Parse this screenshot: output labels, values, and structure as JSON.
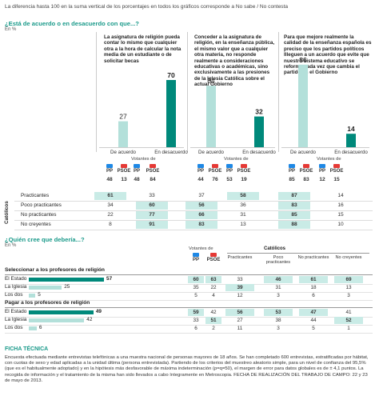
{
  "header_note": "La diferencia hasta 100 en la suma vertical de los porcentajes en todos los gráficos corresponde a No sabe / No contesta",
  "section1": {
    "title": "¿Está de acuerdo o en desacuerdo con que...?",
    "unit": "En %",
    "statements": [
      "La asignatura de religión pueda contar lo mismo que cualquier otra a la hora de calcular la nota media de un estudiante o de solicitar becas",
      "Conceder a la asignatura de religión, en la enseñanza pública, el mismo valor que a cualquier otra materia, no responde realmente a consideraciones educativas o académicas, sino exclusivamente a las presiones de la Iglesia Católica sobre el actual Gobierno",
      "Para que mejore realmente la calidad de la enseñanza española es preciso que los partidos políticos llleguen a un acuerdo que evite que nuestro sistema educativo se reforme cada vez que cambia el partido en el Gobierno"
    ],
    "bar_labels": [
      "De acuerdo",
      "En desacuerdo"
    ],
    "votantes_label": "Votantes de",
    "party_labels": [
      "PP",
      "PSOE"
    ],
    "catolicos_label": "Católicos",
    "row_labels": [
      "Practicantes",
      "Poco practicantes",
      "No practicantes",
      "No creyentes"
    ]
  },
  "section2": {
    "title": "¿Quién cree que debería...?",
    "unit": "En %",
    "votantes_label": "Votantes de",
    "catolicos_label": "Católicos",
    "party_labels": [
      "PP",
      "PSOE"
    ],
    "cat_cols": [
      "Practicantes",
      "Poco practicantes",
      "No practicantes",
      "No creyentes"
    ],
    "groups": [
      {
        "title": "Seleccionar a los profesores de religión",
        "rows": [
          "El Estado",
          "La Iglesia",
          "Los dos"
        ]
      },
      {
        "title": "Pagar a los profesores de religión",
        "rows": [
          "El Estado",
          "La Iglesia",
          "Los dos"
        ]
      }
    ]
  },
  "ficha": {
    "title": "FICHA TÉCNICA",
    "text": "Encuesta efectuada mediante entrevistas telefónicas a una muestra nacional de personas mayores de 18 años. Se han completado 600 entrevistas, estratificadas por hábitat, con cuotas de sexo y edad aplicadas a la unidad última (persona entrevistada). Partiendo de los criterios del muestreo aleatorio simple, para un nivel de confianza del 95,5% (que es el habitualmente adoptado) y en la hipótesis más desfavorable de máxima indeterminación (p=q=50), el margen de error para datos globales es de ± 4,1 puntos. La recogida de información y el tratamiento de la misma han sido llevados a cabo íntegramente en Metroscopia. FECHA DE REALIZACIÓN DEL TRABAJO DE CAMPO: 22 y 23 de mayo de 2013."
  },
  "colors": {
    "accent": "#00897b",
    "light": "#b3e0da",
    "highlight": "#c9ebe6",
    "pp": "#1e88e5",
    "psoe": "#e53935"
  },
  "chart_data": [
    {
      "type": "bar",
      "title": "¿Está de acuerdo o en desacuerdo con que...?",
      "categories": [
        "Statement 1",
        "Statement 2",
        "Statement 3"
      ],
      "series": [
        {
          "name": "De acuerdo",
          "values": [
            27,
            64,
            86
          ]
        },
        {
          "name": "En desacuerdo",
          "values": [
            70,
            32,
            14
          ]
        }
      ],
      "ylim": [
        0,
        100
      ]
    },
    {
      "type": "table",
      "title": "Votantes de / Católicos by statement",
      "columns": [
        "PP",
        "PSOE",
        "PP",
        "PSOE",
        "PP",
        "PSOE"
      ],
      "column_statements": [
        1,
        1,
        2,
        2,
        3,
        3
      ],
      "votantes": [
        [
          48,
          13
        ],
        [
          48,
          84
        ],
        [
          44,
          76
        ],
        [
          53,
          19
        ],
        [
          85,
          83
        ],
        [
          12,
          15
        ]
      ],
      "votantes_cells": [
        [
          48,
          13,
          48,
          84
        ],
        [
          44,
          76,
          53,
          19
        ],
        [
          85,
          83,
          12,
          15
        ]
      ],
      "catolicos": {
        "Practicantes": [
          61,
          33,
          37,
          58,
          87,
          14
        ],
        "Poco practicantes": [
          34,
          60,
          56,
          36,
          83,
          16
        ],
        "No practicantes": [
          22,
          77,
          66,
          31,
          85,
          15
        ],
        "No creyentes": [
          8,
          91,
          83,
          13,
          88,
          10
        ]
      }
    },
    {
      "type": "bar",
      "title": "Seleccionar a los profesores de religión",
      "categories": [
        "El Estado",
        "La Iglesia",
        "Los dos"
      ],
      "values": [
        57,
        25,
        5
      ],
      "votantes": {
        "El Estado": [
          60,
          63
        ],
        "La Iglesia": [
          35,
          22
        ],
        "Los dos": [
          5,
          4
        ]
      },
      "catolicos": {
        "El Estado": [
          33,
          46,
          61,
          69
        ],
        "La Iglesia": [
          39,
          31,
          18,
          13
        ],
        "Los dos": [
          12,
          3,
          6,
          3
        ]
      }
    },
    {
      "type": "bar",
      "title": "Pagar a los profesores de religión",
      "categories": [
        "El Estado",
        "La Iglesia",
        "Los dos"
      ],
      "values": [
        49,
        42,
        6
      ],
      "votantes": {
        "El Estado": [
          59,
          42
        ],
        "La Iglesia": [
          33,
          51
        ],
        "Los dos": [
          6,
          2
        ]
      },
      "catolicos": {
        "El Estado": [
          56,
          53,
          47,
          41
        ],
        "La Iglesia": [
          27,
          38,
          44,
          52
        ],
        "Los dos": [
          11,
          3,
          5,
          1
        ]
      }
    }
  ]
}
